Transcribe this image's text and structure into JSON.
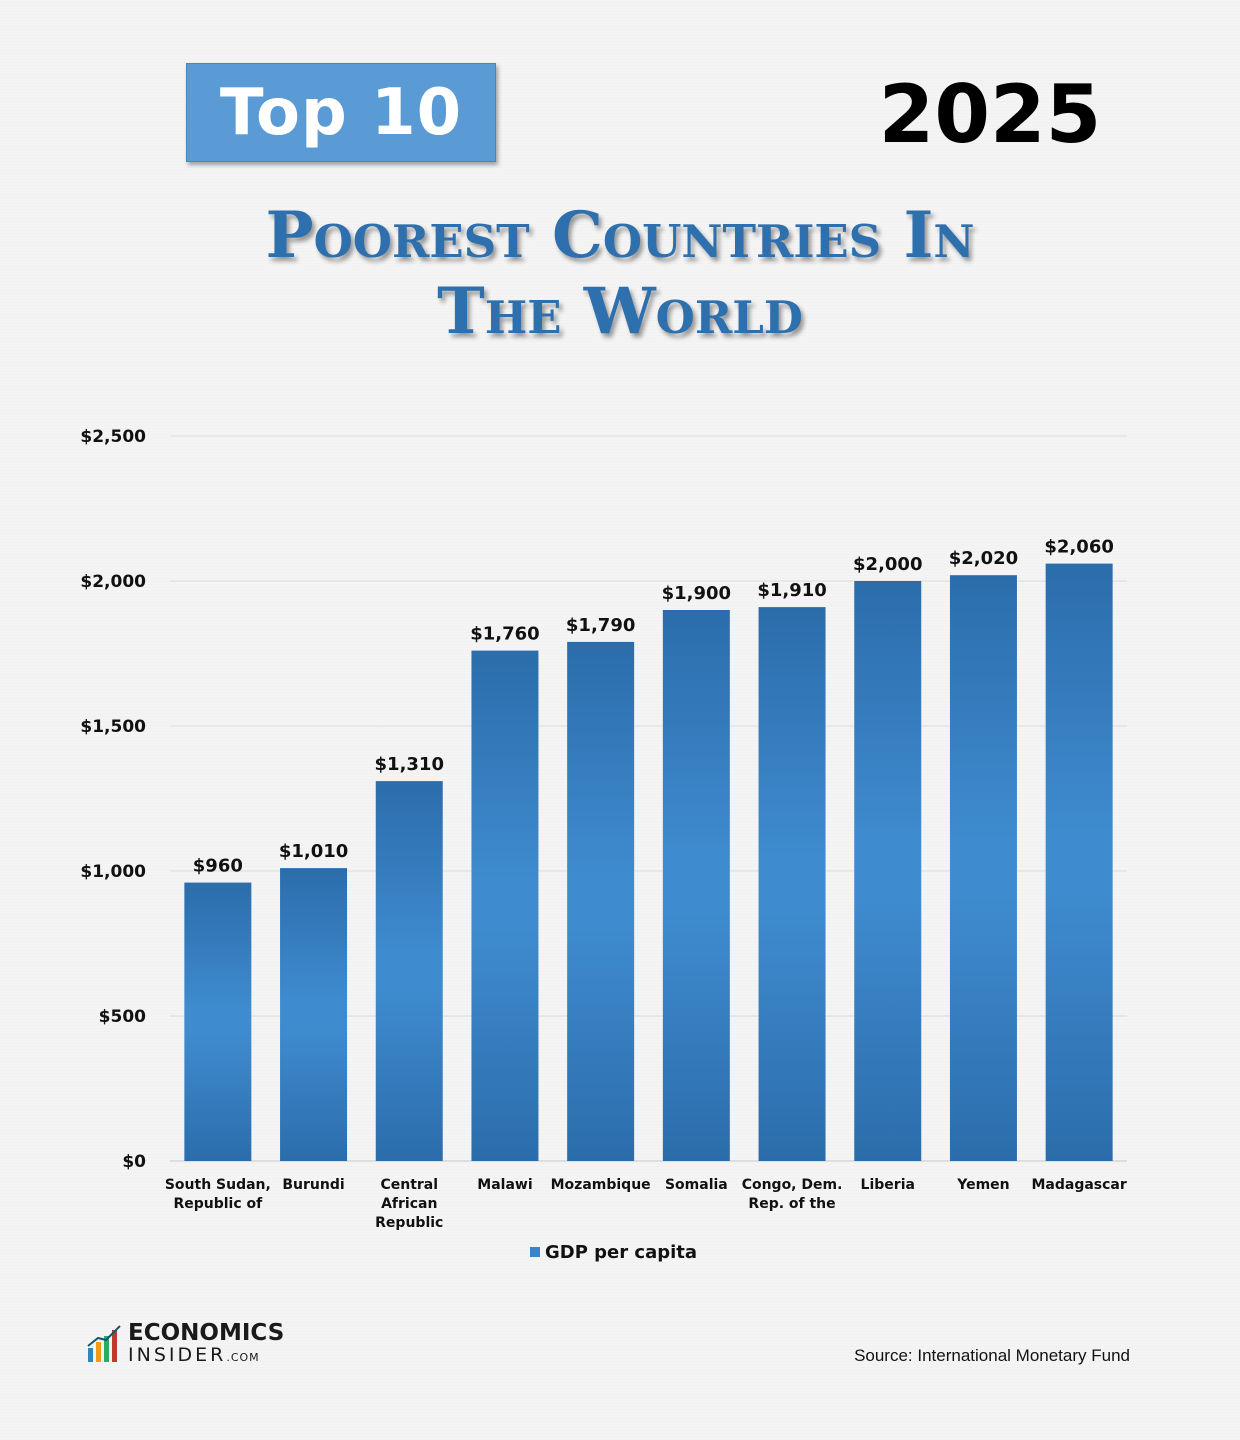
{
  "header": {
    "badge": "Top 10",
    "year": "2025",
    "title_line1": "Poorest Countries In",
    "title_line2": "The World"
  },
  "chart_data": {
    "type": "bar",
    "categories": [
      "South Sudan, Republic of",
      "Burundi",
      "Central African Republic",
      "Malawi",
      "Mozambique",
      "Somalia",
      "Congo, Dem. Rep. of the",
      "Liberia",
      "Yemen",
      "Madagascar"
    ],
    "category_lines": [
      [
        "South Sudan,",
        "Republic of"
      ],
      [
        "Burundi"
      ],
      [
        "Central",
        "African",
        "Republic"
      ],
      [
        "Malawi"
      ],
      [
        "Mozambique"
      ],
      [
        "Somalia"
      ],
      [
        "Congo, Dem.",
        "Rep. of the"
      ],
      [
        "Liberia"
      ],
      [
        "Yemen"
      ],
      [
        "Madagascar"
      ]
    ],
    "series": [
      {
        "name": "GDP per capita",
        "values": [
          960,
          1010,
          1310,
          1760,
          1790,
          1900,
          1910,
          2000,
          2020,
          2060
        ],
        "labels": [
          "$960",
          "$1,010",
          "$1,310",
          "$1,760",
          "$1,790",
          "$1,900",
          "$1,910",
          "$2,000",
          "$2,020",
          "$2,060"
        ]
      }
    ],
    "ylim": [
      0,
      2500
    ],
    "yticks": [
      0,
      500,
      1000,
      1500,
      2000,
      2500
    ],
    "ytick_labels": [
      "$0",
      "$500",
      "$1,000",
      "$1,500",
      "$2,000",
      "$2,500"
    ],
    "grid": true,
    "legend_position": "bottom",
    "bar_color": "#3a84c7"
  },
  "footer": {
    "logo_line1": "ECONOMICS",
    "logo_line2": "INSIDER",
    "logo_suffix": ".COM",
    "source": "Source: International Monetary Fund"
  }
}
